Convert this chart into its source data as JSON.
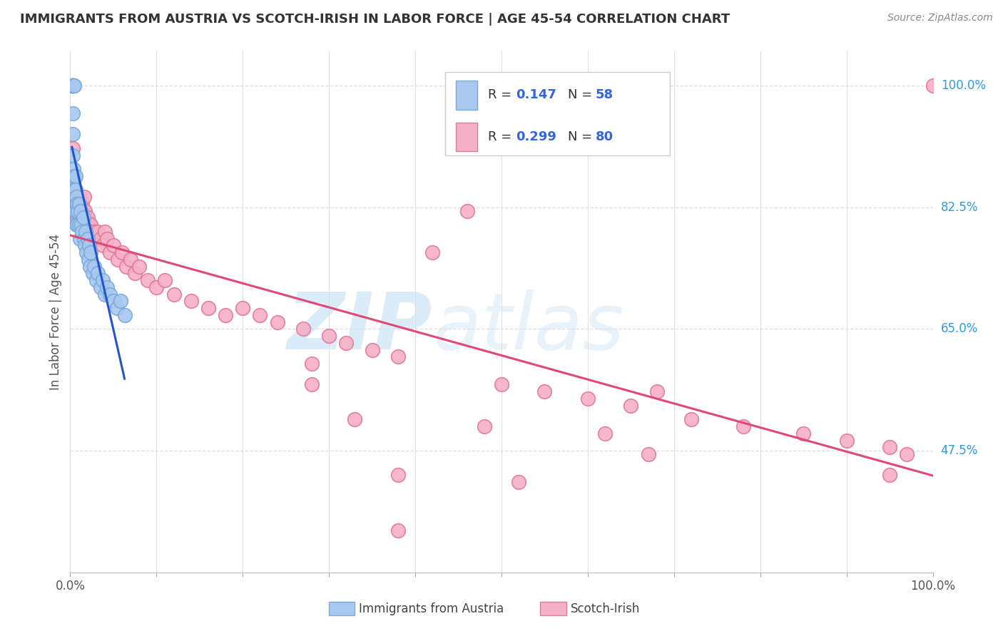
{
  "title": "IMMIGRANTS FROM AUSTRIA VS SCOTCH-IRISH IN LABOR FORCE | AGE 45-54 CORRELATION CHART",
  "source": "Source: ZipAtlas.com",
  "ylabel": "In Labor Force | Age 45-54",
  "xlim": [
    0.0,
    1.0
  ],
  "ylim": [
    0.3,
    1.05
  ],
  "austria_color": "#a8c8f0",
  "austria_edge": "#7aaad8",
  "scotchirish_color": "#f5b0c8",
  "scotchirish_edge": "#e07898",
  "trend_austria_color": "#2255cc",
  "trend_scotchirish_color": "#e04878",
  "background_color": "#ffffff",
  "grid_color": "#dddddd",
  "legend_r1_text": "R = 0.147",
  "legend_n1_text": "N = 58",
  "legend_r2_text": "R = 0.299",
  "legend_n2_text": "N = 80",
  "austria_x": [
    0.002,
    0.002,
    0.002,
    0.002,
    0.002,
    0.002,
    0.002,
    0.003,
    0.003,
    0.003,
    0.003,
    0.003,
    0.003,
    0.004,
    0.004,
    0.004,
    0.004,
    0.005,
    0.005,
    0.005,
    0.005,
    0.006,
    0.006,
    0.006,
    0.007,
    0.007,
    0.008,
    0.008,
    0.009,
    0.01,
    0.01,
    0.011,
    0.012,
    0.013,
    0.014,
    0.015,
    0.016,
    0.017,
    0.018,
    0.019,
    0.02,
    0.021,
    0.022,
    0.023,
    0.024,
    0.026,
    0.028,
    0.03,
    0.032,
    0.035,
    0.038,
    0.04,
    0.043,
    0.046,
    0.05,
    0.054,
    0.058,
    0.063
  ],
  "austria_y": [
    1.0,
    1.0,
    1.0,
    1.0,
    1.0,
    1.0,
    1.0,
    1.0,
    1.0,
    1.0,
    0.96,
    0.93,
    0.9,
    1.0,
    1.0,
    0.88,
    0.85,
    1.0,
    0.87,
    0.85,
    0.82,
    0.87,
    0.85,
    0.82,
    0.84,
    0.8,
    0.83,
    0.8,
    0.82,
    0.83,
    0.8,
    0.78,
    0.82,
    0.8,
    0.79,
    0.81,
    0.78,
    0.77,
    0.79,
    0.76,
    0.78,
    0.75,
    0.77,
    0.74,
    0.76,
    0.73,
    0.74,
    0.72,
    0.73,
    0.71,
    0.72,
    0.7,
    0.71,
    0.7,
    0.69,
    0.68,
    0.69,
    0.67
  ],
  "scotchirish_x": [
    0.002,
    0.003,
    0.004,
    0.004,
    0.005,
    0.005,
    0.006,
    0.007,
    0.007,
    0.008,
    0.008,
    0.009,
    0.01,
    0.011,
    0.012,
    0.013,
    0.014,
    0.015,
    0.016,
    0.017,
    0.018,
    0.019,
    0.02,
    0.022,
    0.024,
    0.026,
    0.028,
    0.03,
    0.032,
    0.035,
    0.038,
    0.04,
    0.043,
    0.046,
    0.05,
    0.055,
    0.06,
    0.065,
    0.07,
    0.075,
    0.08,
    0.09,
    0.1,
    0.11,
    0.12,
    0.14,
    0.16,
    0.18,
    0.2,
    0.22,
    0.24,
    0.27,
    0.3,
    0.32,
    0.35,
    0.38,
    0.42,
    0.46,
    0.5,
    0.55,
    0.6,
    0.65,
    0.68,
    0.72,
    0.78,
    0.85,
    0.9,
    0.95,
    0.97,
    1.0,
    0.28,
    0.33,
    0.38,
    0.48,
    0.52,
    0.62,
    0.67,
    0.28,
    0.38,
    0.95
  ],
  "scotchirish_y": [
    0.84,
    0.91,
    0.86,
    0.84,
    0.83,
    0.82,
    0.83,
    0.84,
    0.82,
    0.83,
    0.81,
    0.82,
    0.84,
    0.83,
    0.82,
    0.81,
    0.83,
    0.82,
    0.84,
    0.82,
    0.81,
    0.8,
    0.81,
    0.8,
    0.8,
    0.79,
    0.79,
    0.78,
    0.79,
    0.78,
    0.77,
    0.79,
    0.78,
    0.76,
    0.77,
    0.75,
    0.76,
    0.74,
    0.75,
    0.73,
    0.74,
    0.72,
    0.71,
    0.72,
    0.7,
    0.69,
    0.68,
    0.67,
    0.68,
    0.67,
    0.66,
    0.65,
    0.64,
    0.63,
    0.62,
    0.61,
    0.76,
    0.82,
    0.57,
    0.56,
    0.55,
    0.54,
    0.56,
    0.52,
    0.51,
    0.5,
    0.49,
    0.48,
    0.47,
    1.0,
    0.57,
    0.52,
    0.44,
    0.51,
    0.43,
    0.5,
    0.47,
    0.6,
    0.36,
    0.44
  ]
}
